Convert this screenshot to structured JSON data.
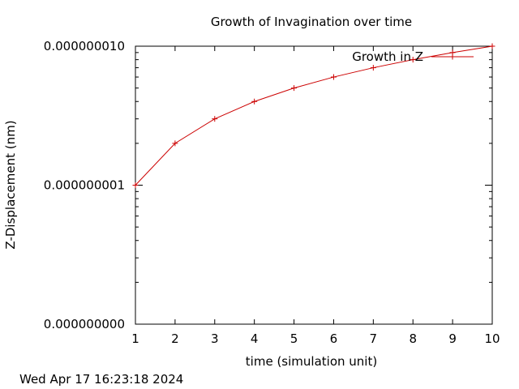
{
  "chart_data": {
    "type": "line",
    "title": "Growth of Invagination over time",
    "xlabel": "time (simulation unit)",
    "ylabel": "Z-Displacement (nm)",
    "xlim": [
      1,
      10
    ],
    "ylim": [
      1e-10,
      1e-08
    ],
    "y_scale": "log",
    "x_ticks": [
      1,
      2,
      3,
      4,
      5,
      6,
      7,
      8,
      9,
      10
    ],
    "x_tick_labels": [
      "1",
      "2",
      "3",
      "4",
      "5",
      "6",
      "7",
      "8",
      "9",
      "10"
    ],
    "y_ticks": [
      1e-10,
      1e-09,
      1e-08
    ],
    "y_tick_labels": [
      "0.000000000",
      "0.000000001",
      "0.000000010"
    ],
    "grid": false,
    "legend_position": "top-right",
    "timestamp": "Wed Apr 17 16:23:18 2024",
    "series": [
      {
        "name": "Growth in Z",
        "color": "#cc0000",
        "marker": "plus",
        "x": [
          1,
          2,
          3,
          4,
          5,
          6,
          7,
          8,
          9,
          10
        ],
        "y": [
          1e-09,
          2e-09,
          3e-09,
          4e-09,
          5e-09,
          6e-09,
          7e-09,
          8e-09,
          9e-09,
          1e-08
        ]
      }
    ]
  }
}
